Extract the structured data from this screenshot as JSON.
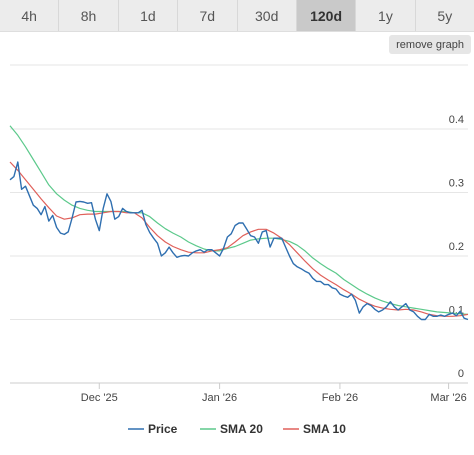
{
  "tabs": [
    {
      "label": "4h",
      "active": false
    },
    {
      "label": "8h",
      "active": false
    },
    {
      "label": "1d",
      "active": false
    },
    {
      "label": "7d",
      "active": false
    },
    {
      "label": "30d",
      "active": false
    },
    {
      "label": "120d",
      "active": true
    },
    {
      "label": "1y",
      "active": false
    },
    {
      "label": "5y",
      "active": false
    }
  ],
  "remove_graph_label": "remove graph",
  "chart_data": {
    "type": "line",
    "x_ticks": [
      {
        "label": "Dec '25",
        "day": 25
      },
      {
        "label": "Jan '26",
        "day": 56
      },
      {
        "label": "Feb '26",
        "day": 87
      },
      {
        "label": "Mar '26",
        "day": 115
      }
    ],
    "x_range": [
      2,
      120
    ],
    "y_ticks": [
      "0",
      "0.1",
      "0.2",
      "0.3",
      "0.4"
    ],
    "y_range": [
      0,
      0.4
    ],
    "legend_position": "bottom",
    "series": [
      {
        "name": "Price",
        "color": "#2f6fb0",
        "points": [
          [
            2,
            0.32
          ],
          [
            3,
            0.325
          ],
          [
            4,
            0.348
          ],
          [
            5,
            0.305
          ],
          [
            6,
            0.31
          ],
          [
            7,
            0.295
          ],
          [
            8,
            0.28
          ],
          [
            9,
            0.275
          ],
          [
            10,
            0.265
          ],
          [
            11,
            0.278
          ],
          [
            12,
            0.255
          ],
          [
            13,
            0.264
          ],
          [
            14,
            0.245
          ],
          [
            15,
            0.236
          ],
          [
            16,
            0.234
          ],
          [
            17,
            0.238
          ],
          [
            18,
            0.26
          ],
          [
            19,
            0.285
          ],
          [
            20,
            0.286
          ],
          [
            21,
            0.285
          ],
          [
            22,
            0.283
          ],
          [
            23,
            0.284
          ],
          [
            24,
            0.258
          ],
          [
            25,
            0.24
          ],
          [
            26,
            0.275
          ],
          [
            27,
            0.298
          ],
          [
            28,
            0.286
          ],
          [
            29,
            0.258
          ],
          [
            30,
            0.262
          ],
          [
            31,
            0.275
          ],
          [
            32,
            0.27
          ],
          [
            33,
            0.268
          ],
          [
            34,
            0.268
          ],
          [
            35,
            0.268
          ],
          [
            36,
            0.272
          ],
          [
            37,
            0.25
          ],
          [
            38,
            0.237
          ],
          [
            39,
            0.228
          ],
          [
            40,
            0.22
          ],
          [
            41,
            0.2
          ],
          [
            42,
            0.205
          ],
          [
            43,
            0.214
          ],
          [
            44,
            0.205
          ],
          [
            45,
            0.198
          ],
          [
            46,
            0.2
          ],
          [
            47,
            0.201
          ],
          [
            48,
            0.2
          ],
          [
            49,
            0.205
          ],
          [
            50,
            0.208
          ],
          [
            51,
            0.21
          ],
          [
            52,
            0.206
          ],
          [
            53,
            0.21
          ],
          [
            54,
            0.21
          ],
          [
            55,
            0.205
          ],
          [
            56,
            0.2
          ],
          [
            57,
            0.212
          ],
          [
            58,
            0.23
          ],
          [
            59,
            0.235
          ],
          [
            60,
            0.248
          ],
          [
            61,
            0.252
          ],
          [
            62,
            0.252
          ],
          [
            63,
            0.242
          ],
          [
            64,
            0.232
          ],
          [
            65,
            0.23
          ],
          [
            66,
            0.22
          ],
          [
            67,
            0.238
          ],
          [
            68,
            0.24
          ],
          [
            69,
            0.214
          ],
          [
            70,
            0.228
          ],
          [
            71,
            0.228
          ],
          [
            72,
            0.228
          ],
          [
            73,
            0.214
          ],
          [
            74,
            0.2
          ],
          [
            75,
            0.188
          ],
          [
            76,
            0.183
          ],
          [
            77,
            0.18
          ],
          [
            78,
            0.176
          ],
          [
            79,
            0.173
          ],
          [
            80,
            0.165
          ],
          [
            81,
            0.16
          ],
          [
            82,
            0.16
          ],
          [
            83,
            0.155
          ],
          [
            84,
            0.155
          ],
          [
            85,
            0.15
          ],
          [
            86,
            0.148
          ],
          [
            87,
            0.14
          ],
          [
            88,
            0.137
          ],
          [
            89,
            0.135
          ],
          [
            90,
            0.14
          ],
          [
            91,
            0.13
          ],
          [
            92,
            0.11
          ],
          [
            93,
            0.12
          ],
          [
            94,
            0.125
          ],
          [
            95,
            0.122
          ],
          [
            96,
            0.116
          ],
          [
            97,
            0.112
          ],
          [
            98,
            0.115
          ],
          [
            99,
            0.12
          ],
          [
            100,
            0.128
          ],
          [
            101,
            0.12
          ],
          [
            102,
            0.115
          ],
          [
            103,
            0.12
          ],
          [
            104,
            0.125
          ],
          [
            105,
            0.115
          ],
          [
            106,
            0.112
          ],
          [
            107,
            0.105
          ],
          [
            108,
            0.1
          ],
          [
            109,
            0.1
          ],
          [
            110,
            0.108
          ],
          [
            111,
            0.105
          ],
          [
            112,
            0.105
          ],
          [
            113,
            0.107
          ],
          [
            114,
            0.105
          ],
          [
            115,
            0.108
          ],
          [
            116,
            0.11
          ],
          [
            117,
            0.106
          ],
          [
            118,
            0.113
          ],
          [
            119,
            0.102
          ],
          [
            120,
            0.1
          ]
        ]
      },
      {
        "name": "SMA 20",
        "color": "#5cc98b",
        "points": [
          [
            2,
            0.405
          ],
          [
            4,
            0.39
          ],
          [
            6,
            0.372
          ],
          [
            8,
            0.352
          ],
          [
            10,
            0.332
          ],
          [
            12,
            0.312
          ],
          [
            14,
            0.298
          ],
          [
            16,
            0.288
          ],
          [
            18,
            0.28
          ],
          [
            20,
            0.275
          ],
          [
            22,
            0.272
          ],
          [
            24,
            0.27
          ],
          [
            26,
            0.27
          ],
          [
            28,
            0.27
          ],
          [
            30,
            0.27
          ],
          [
            32,
            0.27
          ],
          [
            34,
            0.268
          ],
          [
            36,
            0.268
          ],
          [
            38,
            0.262
          ],
          [
            40,
            0.252
          ],
          [
            42,
            0.243
          ],
          [
            44,
            0.236
          ],
          [
            46,
            0.23
          ],
          [
            48,
            0.222
          ],
          [
            50,
            0.216
          ],
          [
            52,
            0.211
          ],
          [
            54,
            0.208
          ],
          [
            56,
            0.208
          ],
          [
            58,
            0.212
          ],
          [
            60,
            0.215
          ],
          [
            62,
            0.22
          ],
          [
            64,
            0.225
          ],
          [
            66,
            0.227
          ],
          [
            68,
            0.228
          ],
          [
            70,
            0.228
          ],
          [
            72,
            0.226
          ],
          [
            74,
            0.223
          ],
          [
            76,
            0.217
          ],
          [
            78,
            0.208
          ],
          [
            80,
            0.197
          ],
          [
            82,
            0.188
          ],
          [
            84,
            0.18
          ],
          [
            86,
            0.173
          ],
          [
            88,
            0.163
          ],
          [
            90,
            0.155
          ],
          [
            92,
            0.147
          ],
          [
            94,
            0.14
          ],
          [
            96,
            0.134
          ],
          [
            98,
            0.129
          ],
          [
            100,
            0.125
          ],
          [
            102,
            0.122
          ],
          [
            104,
            0.12
          ],
          [
            106,
            0.118
          ],
          [
            108,
            0.116
          ],
          [
            110,
            0.114
          ],
          [
            112,
            0.112
          ],
          [
            114,
            0.111
          ],
          [
            116,
            0.11
          ],
          [
            118,
            0.109
          ],
          [
            120,
            0.108
          ]
        ]
      },
      {
        "name": "SMA 10",
        "color": "#e0605a",
        "points": [
          [
            2,
            0.348
          ],
          [
            4,
            0.335
          ],
          [
            6,
            0.32
          ],
          [
            8,
            0.305
          ],
          [
            10,
            0.29
          ],
          [
            12,
            0.276
          ],
          [
            14,
            0.263
          ],
          [
            16,
            0.258
          ],
          [
            18,
            0.26
          ],
          [
            20,
            0.265
          ],
          [
            22,
            0.266
          ],
          [
            24,
            0.266
          ],
          [
            26,
            0.268
          ],
          [
            28,
            0.27
          ],
          [
            30,
            0.27
          ],
          [
            32,
            0.268
          ],
          [
            34,
            0.268
          ],
          [
            36,
            0.26
          ],
          [
            38,
            0.245
          ],
          [
            40,
            0.232
          ],
          [
            42,
            0.222
          ],
          [
            44,
            0.215
          ],
          [
            46,
            0.21
          ],
          [
            48,
            0.206
          ],
          [
            50,
            0.205
          ],
          [
            52,
            0.205
          ],
          [
            54,
            0.208
          ],
          [
            56,
            0.21
          ],
          [
            58,
            0.213
          ],
          [
            60,
            0.222
          ],
          [
            62,
            0.232
          ],
          [
            64,
            0.238
          ],
          [
            66,
            0.242
          ],
          [
            68,
            0.242
          ],
          [
            70,
            0.236
          ],
          [
            72,
            0.228
          ],
          [
            74,
            0.218
          ],
          [
            76,
            0.205
          ],
          [
            78,
            0.192
          ],
          [
            80,
            0.18
          ],
          [
            82,
            0.17
          ],
          [
            84,
            0.162
          ],
          [
            86,
            0.155
          ],
          [
            88,
            0.147
          ],
          [
            90,
            0.14
          ],
          [
            92,
            0.132
          ],
          [
            94,
            0.126
          ],
          [
            96,
            0.121
          ],
          [
            98,
            0.118
          ],
          [
            100,
            0.116
          ],
          [
            102,
            0.115
          ],
          [
            104,
            0.116
          ],
          [
            106,
            0.115
          ],
          [
            108,
            0.112
          ],
          [
            110,
            0.108
          ],
          [
            112,
            0.106
          ],
          [
            114,
            0.105
          ],
          [
            116,
            0.105
          ],
          [
            118,
            0.106
          ],
          [
            120,
            0.108
          ]
        ]
      }
    ]
  }
}
